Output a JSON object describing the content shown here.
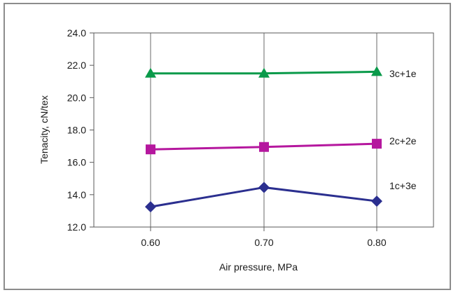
{
  "chart_data": {
    "type": "line",
    "x": [
      0.6,
      0.7,
      0.8
    ],
    "x_tick_labels": [
      "0.60",
      "0.70",
      "0.80"
    ],
    "xlabel": "Air pressure, MPa",
    "ylabel": "Tenacity, cN/tex",
    "ylim": [
      12.0,
      24.0
    ],
    "y_ticks": [
      12.0,
      14.0,
      16.0,
      18.0,
      20.0,
      22.0,
      24.0
    ],
    "y_tick_labels": [
      "12.0",
      "14.0",
      "16.0",
      "18.0",
      "20.0",
      "22.0",
      "24.0"
    ],
    "grid": "vertical at x categories",
    "series": [
      {
        "name": "3c+1e",
        "values": [
          21.5,
          21.5,
          21.6
        ],
        "color": "#0a9a4a",
        "marker": "triangle"
      },
      {
        "name": "2c+2e",
        "values": [
          16.8,
          16.95,
          17.15
        ],
        "color": "#b5179e",
        "marker": "square"
      },
      {
        "name": "1c+3e",
        "values": [
          13.25,
          14.45,
          13.6
        ],
        "color": "#2b2f8f",
        "marker": "diamond"
      }
    ]
  }
}
